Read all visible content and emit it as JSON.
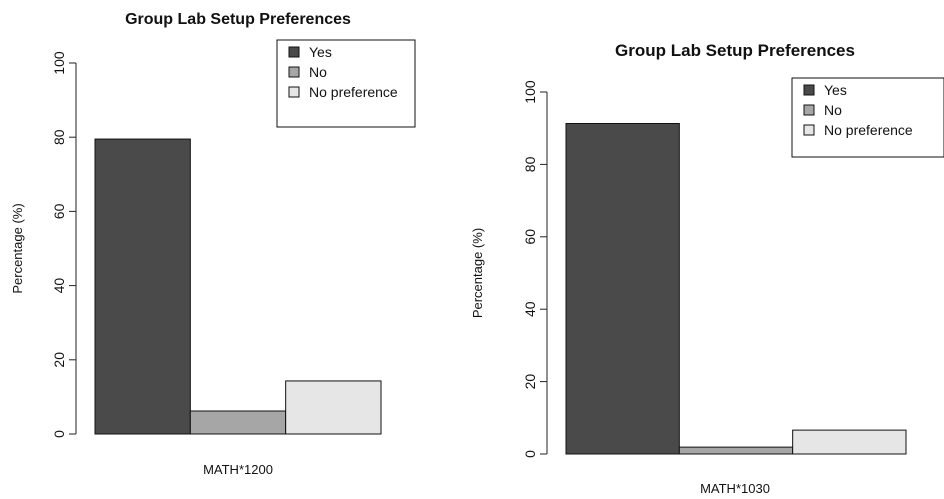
{
  "chart_data": [
    {
      "type": "bar",
      "title": "Group Lab Setup Preferences",
      "xlabel": "MATH*1200",
      "ylabel": "Percentage (%)",
      "ylim": [
        0,
        100
      ],
      "yticks": [
        0,
        20,
        40,
        60,
        80,
        100
      ],
      "categories": [
        "MATH*1200"
      ],
      "grid": false,
      "legend_position": "top-right",
      "series": [
        {
          "name": "Yes",
          "color": "#4a4a4a",
          "values": [
            79.5
          ]
        },
        {
          "name": "No",
          "color": "#a6a6a6",
          "values": [
            6.2
          ]
        },
        {
          "name": "No preference",
          "color": "#e6e6e6",
          "values": [
            14.3
          ]
        }
      ]
    },
    {
      "type": "bar",
      "title": "Group Lab Setup Preferences",
      "xlabel": "MATH*1030",
      "ylabel": "Percentage (%)",
      "ylim": [
        0,
        100
      ],
      "yticks": [
        0,
        20,
        40,
        60,
        80,
        100
      ],
      "categories": [
        "MATH*1030"
      ],
      "grid": false,
      "legend_position": "top-right",
      "series": [
        {
          "name": "Yes",
          "color": "#4a4a4a",
          "values": [
            91.3
          ]
        },
        {
          "name": "No",
          "color": "#a6a6a6",
          "values": [
            1.9
          ]
        },
        {
          "name": "No preference",
          "color": "#e6e6e6",
          "values": [
            6.6
          ]
        }
      ]
    }
  ]
}
